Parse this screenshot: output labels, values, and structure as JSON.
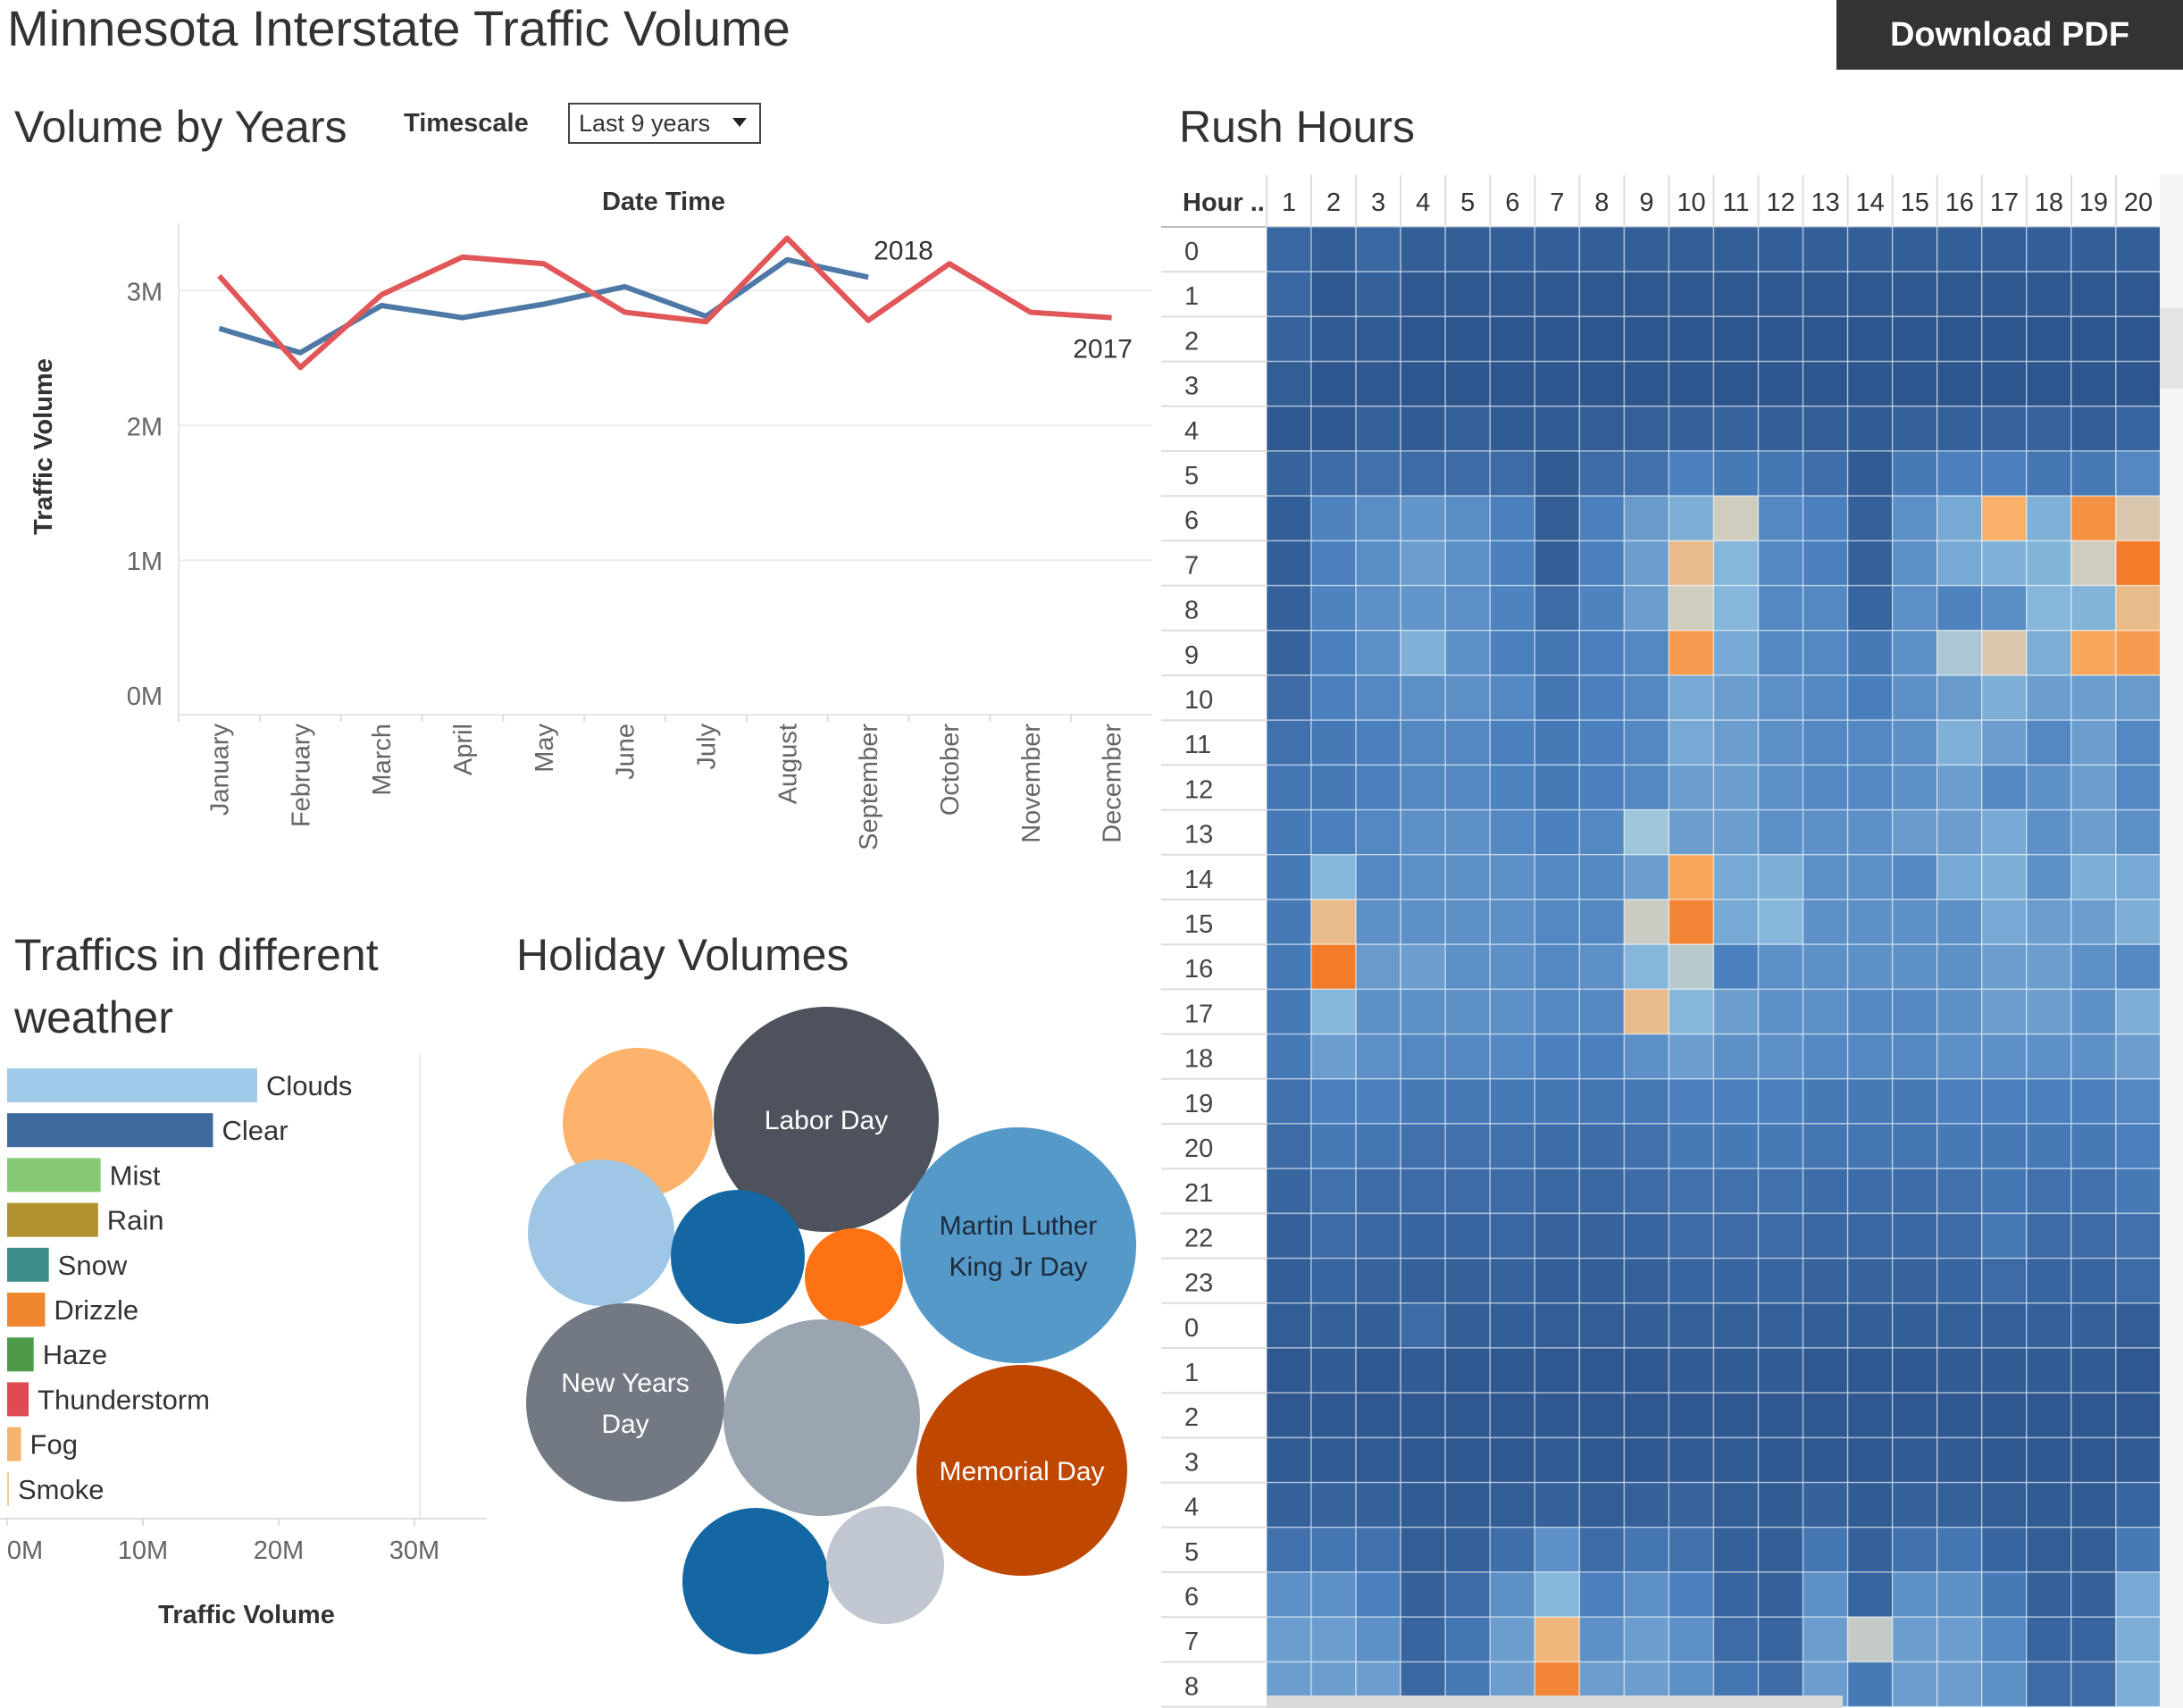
{
  "header": {
    "title": "Minnesota Interstate Traffic Volume",
    "download_label": "Download PDF"
  },
  "line_section": {
    "title": "Volume by Years",
    "timescale_label": "Timescale",
    "timescale_value": "Last 9 years"
  },
  "weather_section": {
    "title_line1": "Traffics in different",
    "title_line2": "weather"
  },
  "holiday_section": {
    "title": "Holiday Volumes"
  },
  "heatmap_section": {
    "title": "Rush Hours",
    "hour_header": "Hour .."
  },
  "colors": {
    "series_2018": "#4e79a7",
    "series_2017": "#e15759",
    "heat_low": "#2a5289",
    "heat_high": "#f28e2b"
  },
  "chart_data": [
    {
      "type": "line",
      "title": "Date Time",
      "xlabel": "",
      "ylabel": "Traffic Volume",
      "categories": [
        "January",
        "February",
        "March",
        "April",
        "May",
        "June",
        "July",
        "August",
        "September",
        "October",
        "November",
        "December"
      ],
      "y_ticks": [
        "0M",
        "1M",
        "2M",
        "3M"
      ],
      "ylim": [
        0,
        3500000
      ],
      "grid": true,
      "series": [
        {
          "name": "2018",
          "color": "#4e79a7",
          "values": [
            2720000,
            2540000,
            2890000,
            2800000,
            2900000,
            3030000,
            2810000,
            3230000,
            3100000,
            null,
            null,
            null
          ]
        },
        {
          "name": "2017",
          "color": "#e15759",
          "values": [
            3110000,
            2430000,
            2970000,
            3250000,
            3200000,
            2840000,
            2770000,
            3390000,
            2780000,
            3200000,
            2840000,
            2800000
          ]
        }
      ]
    },
    {
      "type": "bar",
      "orientation": "horizontal",
      "xlabel": "Traffic Volume",
      "ylabel": "",
      "x_ticks": [
        "0M",
        "10M",
        "20M",
        "30M"
      ],
      "xlim": [
        0,
        35000000
      ],
      "categories": [
        "Clouds",
        "Clear",
        "Mist",
        "Rain",
        "Snow",
        "Drizzle",
        "Haze",
        "Thunderstorm",
        "Fog",
        "Smoke"
      ],
      "values": [
        19800000,
        16300000,
        7400000,
        7200000,
        3300000,
        3000000,
        2100000,
        1700000,
        1100000,
        100000
      ],
      "colors": [
        "#9fcae8",
        "#3f6aa0",
        "#86c974",
        "#b0902f",
        "#3a8d88",
        "#f0862d",
        "#4f9a49",
        "#df4b55",
        "#f6b36e",
        "#f6c9a0"
      ]
    },
    {
      "type": "bubble",
      "items": [
        {
          "label": "",
          "value": 46,
          "color": "#fdb36b"
        },
        {
          "label": "Labor Day",
          "value": 100,
          "color": "#4d525c"
        },
        {
          "label": "",
          "value": 42,
          "color": "#9fc6e5"
        },
        {
          "label": "",
          "value": 38,
          "color": "#1467a3"
        },
        {
          "label": "",
          "value": 20,
          "color": "#fd7314"
        },
        {
          "label": "Martin Luther King Jr Day",
          "value": 110,
          "color": "#5599c9"
        },
        {
          "label": "New Years Day",
          "value": 77,
          "color": "#727983"
        },
        {
          "label": "",
          "value": 75,
          "color": "#9ba4b1"
        },
        {
          "label": "Memorial Day",
          "value": 88,
          "color": "#c04700"
        },
        {
          "label": "",
          "value": 42,
          "color": "#1467a3"
        },
        {
          "label": "",
          "value": 27,
          "color": "#c0c7d1"
        }
      ]
    },
    {
      "type": "heatmap",
      "columns": [
        "1",
        "2",
        "3",
        "4",
        "5",
        "6",
        "7",
        "8",
        "9",
        "10",
        "11",
        "12",
        "13",
        "14",
        "15",
        "16",
        "17",
        "18",
        "19",
        "20"
      ],
      "rows": [
        "0",
        "1",
        "2",
        "3",
        "4",
        "5",
        "6",
        "7",
        "8",
        "9",
        "10",
        "11",
        "12",
        "13",
        "14",
        "15",
        "16",
        "17",
        "18",
        "19",
        "20",
        "21",
        "22",
        "23",
        "0",
        "1",
        "2",
        "3",
        "4",
        "5",
        "6",
        "7",
        "8"
      ],
      "scale": "0 = darkest blue, 1.0 = light blue, 1.5 = neutral grey/beige, 2.0 = dark orange",
      "values": [
        [
          0.26,
          0.18,
          0.26,
          0.18,
          0.18,
          0.18,
          0.18,
          0.18,
          0.18,
          0.18,
          0.18,
          0.18,
          0.18,
          0.18,
          0.18,
          0.18,
          0.18,
          0.18,
          0.18,
          0.18
        ],
        [
          0.26,
          0.12,
          0.2,
          0.12,
          0.12,
          0.12,
          0.12,
          0.12,
          0.12,
          0.12,
          0.12,
          0.12,
          0.12,
          0.12,
          0.12,
          0.12,
          0.12,
          0.12,
          0.12,
          0.12
        ],
        [
          0.22,
          0.14,
          0.14,
          0.1,
          0.1,
          0.1,
          0.1,
          0.1,
          0.1,
          0.1,
          0.1,
          0.1,
          0.1,
          0.1,
          0.1,
          0.1,
          0.1,
          0.1,
          0.1,
          0.1
        ],
        [
          0.16,
          0.1,
          0.12,
          0.1,
          0.1,
          0.1,
          0.1,
          0.1,
          0.1,
          0.1,
          0.1,
          0.1,
          0.1,
          0.1,
          0.1,
          0.1,
          0.1,
          0.1,
          0.1,
          0.1
        ],
        [
          0.12,
          0.12,
          0.2,
          0.14,
          0.2,
          0.14,
          0.14,
          0.16,
          0.2,
          0.2,
          0.22,
          0.16,
          0.16,
          0.14,
          0.2,
          0.2,
          0.22,
          0.22,
          0.16,
          0.24
        ],
        [
          0.22,
          0.3,
          0.36,
          0.3,
          0.3,
          0.3,
          0.14,
          0.3,
          0.36,
          0.5,
          0.44,
          0.4,
          0.34,
          0.14,
          0.44,
          0.5,
          0.5,
          0.4,
          0.44,
          0.56
        ],
        [
          0.18,
          0.52,
          0.6,
          0.66,
          0.6,
          0.5,
          0.16,
          0.5,
          0.7,
          0.84,
          1.5,
          0.56,
          0.5,
          0.2,
          0.62,
          0.8,
          1.75,
          0.86,
          1.9,
          1.55
        ],
        [
          0.18,
          0.5,
          0.6,
          0.72,
          0.62,
          0.5,
          0.18,
          0.5,
          0.72,
          1.65,
          0.9,
          0.56,
          0.5,
          0.2,
          0.62,
          0.8,
          0.86,
          0.88,
          1.5,
          2.0
        ],
        [
          0.2,
          0.52,
          0.62,
          0.66,
          0.62,
          0.52,
          0.3,
          0.52,
          0.72,
          1.5,
          0.9,
          0.56,
          0.56,
          0.24,
          0.62,
          0.52,
          0.6,
          0.9,
          0.88,
          1.65
        ],
        [
          0.22,
          0.5,
          0.62,
          0.86,
          0.62,
          0.5,
          0.4,
          0.5,
          0.56,
          1.85,
          0.8,
          0.56,
          0.56,
          0.44,
          0.62,
          1.2,
          1.55,
          0.84,
          1.8,
          1.85
        ],
        [
          0.3,
          0.5,
          0.56,
          0.62,
          0.62,
          0.56,
          0.4,
          0.5,
          0.56,
          0.8,
          0.72,
          0.62,
          0.56,
          0.48,
          0.62,
          0.7,
          0.84,
          0.72,
          0.72,
          0.7
        ],
        [
          0.36,
          0.44,
          0.5,
          0.56,
          0.56,
          0.5,
          0.44,
          0.5,
          0.56,
          0.8,
          0.72,
          0.62,
          0.56,
          0.56,
          0.62,
          0.86,
          0.72,
          0.56,
          0.72,
          0.56
        ],
        [
          0.4,
          0.44,
          0.5,
          0.56,
          0.56,
          0.52,
          0.44,
          0.5,
          0.56,
          0.72,
          0.72,
          0.62,
          0.56,
          0.56,
          0.62,
          0.72,
          0.56,
          0.62,
          0.72,
          0.56
        ],
        [
          0.44,
          0.5,
          0.56,
          0.62,
          0.62,
          0.56,
          0.5,
          0.56,
          1.1,
          0.72,
          0.72,
          0.62,
          0.62,
          0.62,
          0.7,
          0.72,
          0.8,
          0.62,
          0.72,
          0.62
        ],
        [
          0.44,
          0.9,
          0.56,
          0.62,
          0.62,
          0.62,
          0.56,
          0.56,
          0.72,
          1.8,
          0.8,
          0.84,
          0.62,
          0.62,
          0.56,
          0.8,
          0.84,
          0.62,
          0.84,
          0.8
        ],
        [
          0.44,
          1.65,
          0.62,
          0.62,
          0.62,
          0.62,
          0.56,
          0.56,
          1.45,
          1.95,
          0.8,
          0.9,
          0.62,
          0.62,
          0.62,
          0.62,
          0.8,
          0.72,
          0.72,
          0.84
        ],
        [
          0.44,
          2.0,
          0.7,
          0.72,
          0.62,
          0.62,
          0.56,
          0.62,
          0.9,
          1.3,
          0.5,
          0.62,
          0.62,
          0.62,
          0.62,
          0.62,
          0.72,
          0.72,
          0.62,
          0.56
        ],
        [
          0.44,
          0.9,
          0.62,
          0.62,
          0.62,
          0.62,
          0.56,
          0.56,
          1.65,
          0.9,
          0.72,
          0.62,
          0.62,
          0.56,
          0.56,
          0.62,
          0.72,
          0.72,
          0.62,
          0.84
        ],
        [
          0.44,
          0.72,
          0.62,
          0.56,
          0.56,
          0.56,
          0.5,
          0.5,
          0.62,
          0.72,
          0.62,
          0.62,
          0.56,
          0.56,
          0.56,
          0.62,
          0.62,
          0.62,
          0.62,
          0.72
        ],
        [
          0.36,
          0.5,
          0.5,
          0.44,
          0.44,
          0.44,
          0.4,
          0.4,
          0.44,
          0.5,
          0.5,
          0.5,
          0.44,
          0.44,
          0.44,
          0.5,
          0.5,
          0.5,
          0.5,
          0.56
        ],
        [
          0.3,
          0.44,
          0.4,
          0.36,
          0.36,
          0.36,
          0.32,
          0.32,
          0.36,
          0.44,
          0.44,
          0.44,
          0.4,
          0.4,
          0.4,
          0.44,
          0.44,
          0.44,
          0.44,
          0.5
        ],
        [
          0.24,
          0.36,
          0.3,
          0.3,
          0.3,
          0.3,
          0.26,
          0.26,
          0.3,
          0.36,
          0.36,
          0.36,
          0.32,
          0.32,
          0.32,
          0.36,
          0.4,
          0.36,
          0.36,
          0.44
        ],
        [
          0.2,
          0.3,
          0.26,
          0.24,
          0.24,
          0.26,
          0.22,
          0.22,
          0.24,
          0.3,
          0.3,
          0.3,
          0.26,
          0.26,
          0.26,
          0.3,
          0.44,
          0.3,
          0.3,
          0.36
        ],
        [
          0.18,
          0.24,
          0.22,
          0.2,
          0.2,
          0.22,
          0.18,
          0.18,
          0.2,
          0.24,
          0.24,
          0.24,
          0.22,
          0.22,
          0.22,
          0.24,
          0.3,
          0.24,
          0.24,
          0.3
        ],
        [
          0.16,
          0.2,
          0.18,
          0.3,
          0.18,
          0.18,
          0.16,
          0.16,
          0.18,
          0.2,
          0.2,
          0.2,
          0.18,
          0.18,
          0.18,
          0.2,
          0.2,
          0.2,
          0.2,
          0.16
        ],
        [
          0.12,
          0.14,
          0.12,
          0.14,
          0.12,
          0.12,
          0.12,
          0.12,
          0.12,
          0.14,
          0.14,
          0.14,
          0.12,
          0.12,
          0.12,
          0.14,
          0.14,
          0.14,
          0.14,
          0.12
        ],
        [
          0.12,
          0.12,
          0.12,
          0.12,
          0.12,
          0.12,
          0.12,
          0.12,
          0.12,
          0.12,
          0.12,
          0.12,
          0.12,
          0.12,
          0.12,
          0.12,
          0.12,
          0.12,
          0.12,
          0.12
        ],
        [
          0.14,
          0.14,
          0.14,
          0.12,
          0.12,
          0.12,
          0.14,
          0.12,
          0.12,
          0.14,
          0.14,
          0.12,
          0.12,
          0.12,
          0.14,
          0.14,
          0.12,
          0.12,
          0.12,
          0.14
        ],
        [
          0.2,
          0.22,
          0.2,
          0.14,
          0.14,
          0.16,
          0.2,
          0.16,
          0.2,
          0.22,
          0.16,
          0.14,
          0.2,
          0.14,
          0.2,
          0.2,
          0.16,
          0.14,
          0.14,
          0.24
        ],
        [
          0.36,
          0.4,
          0.36,
          0.16,
          0.2,
          0.34,
          0.62,
          0.3,
          0.4,
          0.36,
          0.2,
          0.16,
          0.4,
          0.2,
          0.36,
          0.4,
          0.24,
          0.16,
          0.16,
          0.44
        ],
        [
          0.62,
          0.62,
          0.5,
          0.2,
          0.3,
          0.62,
          0.9,
          0.5,
          0.62,
          0.5,
          0.24,
          0.2,
          0.62,
          0.24,
          0.62,
          0.62,
          0.44,
          0.2,
          0.2,
          0.8
        ],
        [
          0.72,
          0.72,
          0.62,
          0.24,
          0.4,
          0.72,
          1.7,
          0.62,
          0.72,
          0.62,
          0.3,
          0.24,
          0.72,
          1.4,
          0.72,
          0.72,
          0.56,
          0.24,
          0.24,
          0.84
        ],
        [
          0.72,
          0.72,
          0.72,
          0.26,
          0.44,
          0.72,
          1.95,
          0.72,
          0.72,
          0.62,
          0.4,
          0.3,
          0.72,
          0.44,
          0.72,
          0.72,
          0.62,
          0.3,
          0.3,
          0.84
        ]
      ]
    }
  ]
}
